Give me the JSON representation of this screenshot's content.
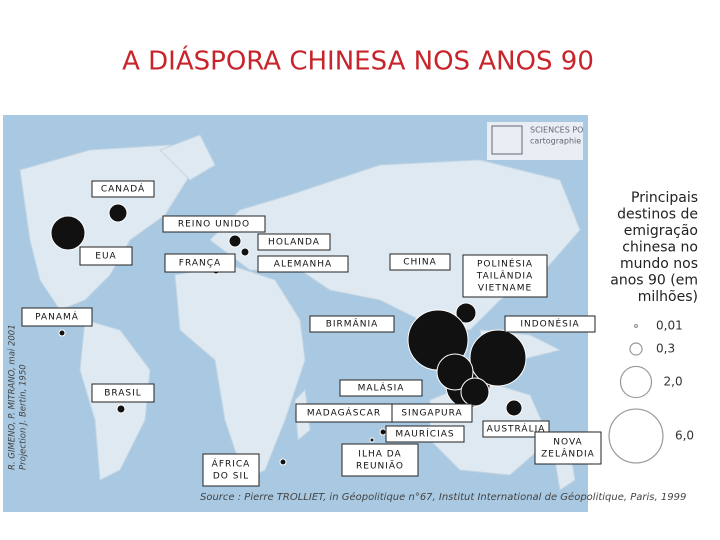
{
  "title": "A DIÁSPORA CHINESA NOS ANOS 90",
  "logo": {
    "name": "SCIENCES PO",
    "sub": "cartographie"
  },
  "map_labels": [
    {
      "lines": [
        "CANADÁ"
      ]
    },
    {
      "lines": [
        "REINO UNIDO"
      ]
    },
    {
      "lines": [
        "HOLANDA"
      ]
    },
    {
      "lines": [
        "EUA"
      ]
    },
    {
      "lines": [
        "FRANÇA"
      ]
    },
    {
      "lines": [
        "ALEMANHA"
      ]
    },
    {
      "lines": [
        "CHINA"
      ]
    },
    {
      "lines": [
        "POLINÉSIA",
        "TAILÂNDIA",
        "VIETNAME"
      ]
    },
    {
      "lines": [
        "PANAMÁ"
      ]
    },
    {
      "lines": [
        "BIRMÂNIA"
      ]
    },
    {
      "lines": [
        "INDONÉSIA"
      ]
    },
    {
      "lines": [
        "MALÁSIA"
      ]
    },
    {
      "lines": [
        "BRASIL"
      ]
    },
    {
      "lines": [
        "MADAGÁSCAR"
      ]
    },
    {
      "lines": [
        "SINGAPURA"
      ]
    },
    {
      "lines": [
        "MAURÍCIAS"
      ]
    },
    {
      "lines": [
        "AUSTRÁLIA"
      ]
    },
    {
      "lines": [
        "ILHA DA",
        "REUNIÃO"
      ]
    },
    {
      "lines": [
        "ÁFRICA",
        "DO SIL"
      ]
    },
    {
      "lines": [
        "NOVA",
        "ZELÂNDIA"
      ]
    }
  ],
  "legend_title": [
    "Principais",
    "destinos de",
    "emigração",
    "chinesa no",
    "mundo nos",
    "anos 90 (em",
    "milhões)"
  ],
  "legend": [
    {
      "value": 0.01,
      "label": "0,01"
    },
    {
      "value": 0.3,
      "label": "0,3"
    },
    {
      "value": 2.0,
      "label": "2,0"
    },
    {
      "value": 6.0,
      "label": "6,0"
    }
  ],
  "source": "Source : Pierre TROLLIET, in Géopolitique n°67, Institut International de Géopolitique, Paris, 1999",
  "credits": [
    "R. GIMENO, P. MITRANO, mai 2001",
    "Projection J. Bertin, 1950"
  ]
}
